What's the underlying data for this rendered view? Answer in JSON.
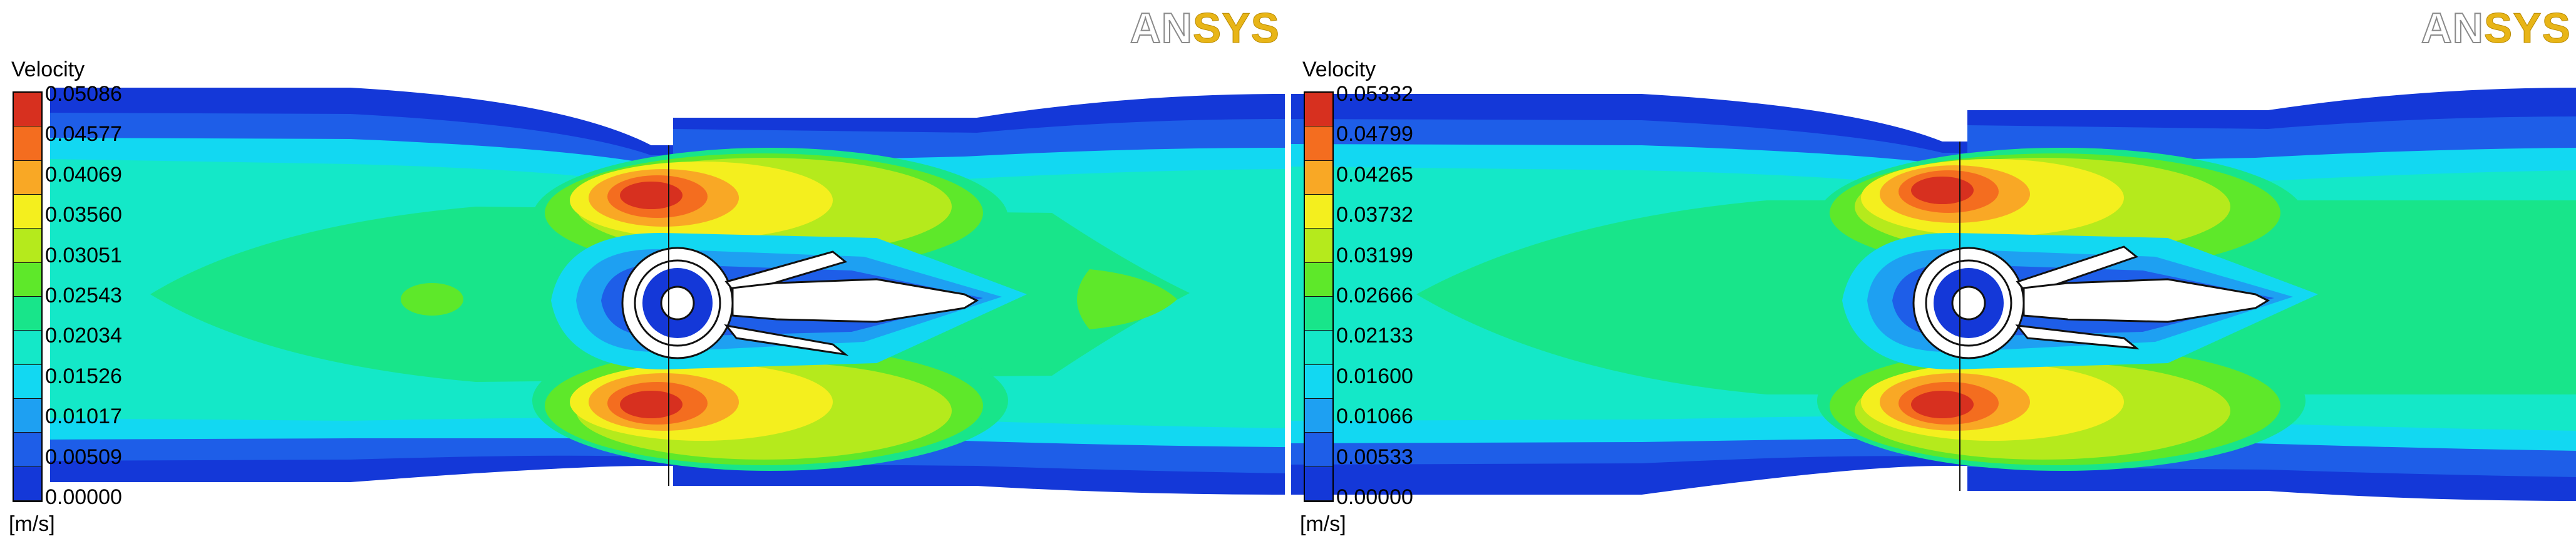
{
  "panels": [
    {
      "id": "left",
      "logo": {
        "part1": "AN",
        "part2": "SYS"
      },
      "legend": {
        "title": "Velocity",
        "unit": "[m/s]",
        "labels": [
          "0.05086",
          "0.04577",
          "0.04069",
          "0.03560",
          "0.03051",
          "0.02543",
          "0.02034",
          "0.01526",
          "0.01017",
          "0.00509",
          "0.00000"
        ]
      }
    },
    {
      "id": "right",
      "logo": {
        "part1": "AN",
        "part2": "SYS"
      },
      "legend": {
        "title": "Velocity",
        "unit": "[m/s]",
        "labels": [
          "0.05332",
          "0.04799",
          "0.04265",
          "0.03732",
          "0.03199",
          "0.02666",
          "0.02133",
          "0.01600",
          "0.01066",
          "0.00533",
          "0.00000"
        ]
      }
    }
  ],
  "colormap": [
    "#d7301f",
    "#f46d1f",
    "#f9a825",
    "#f4ef1e",
    "#b5ea1c",
    "#5ee82a",
    "#18e58a",
    "#14e8c8",
    "#12d8f2",
    "#1ea0f2",
    "#1e5ee8",
    "#1438d8"
  ]
}
